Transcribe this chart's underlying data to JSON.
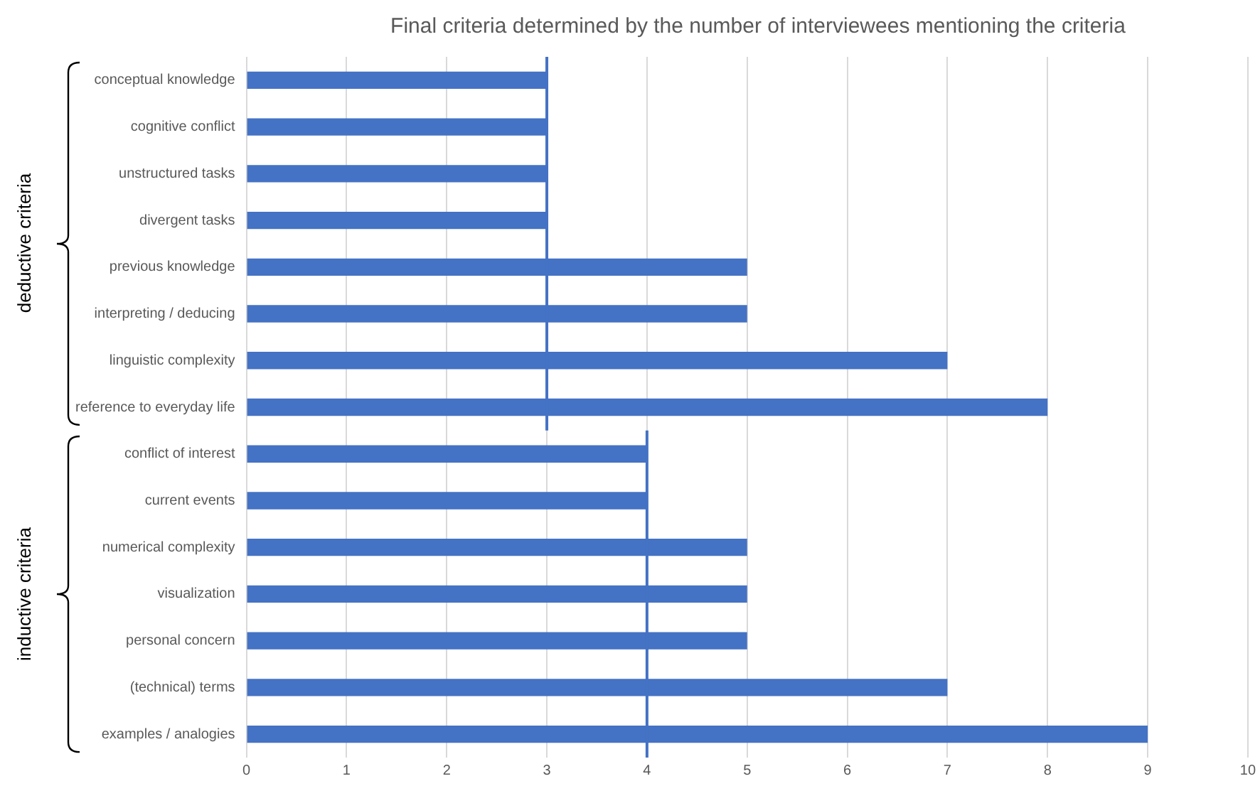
{
  "chart_data": {
    "type": "bar",
    "orientation": "horizontal",
    "title": "Final criteria determined by the number of interviewees mentioning the criteria",
    "categories": [
      "conceptual knowledge",
      "cognitive conflict",
      "unstructured tasks",
      "divergent tasks",
      "previous knowledge",
      "interpreting / deducing",
      "linguistic complexity",
      "reference to everyday life",
      "conflict of interest",
      "current events",
      "numerical complexity",
      "visualization",
      "personal concern",
      "(technical) terms",
      "examples / analogies"
    ],
    "values": [
      3,
      3,
      3,
      3,
      5,
      5,
      7,
      8,
      4,
      4,
      5,
      5,
      5,
      7,
      9
    ],
    "color": "#4472c4",
    "xlim": [
      0,
      10
    ],
    "xticks": [
      0,
      1,
      2,
      3,
      4,
      5,
      6,
      7,
      8,
      9,
      10
    ],
    "grid": "x",
    "ref_lines": [
      {
        "axis": "x",
        "value": 3,
        "label": null,
        "color": "#4472c4"
      },
      {
        "axis": "x",
        "value": 4,
        "label": null,
        "color": "#4472c4"
      }
    ],
    "annotations": [
      "deductive criteria",
      "inductive criteria"
    ]
  }
}
